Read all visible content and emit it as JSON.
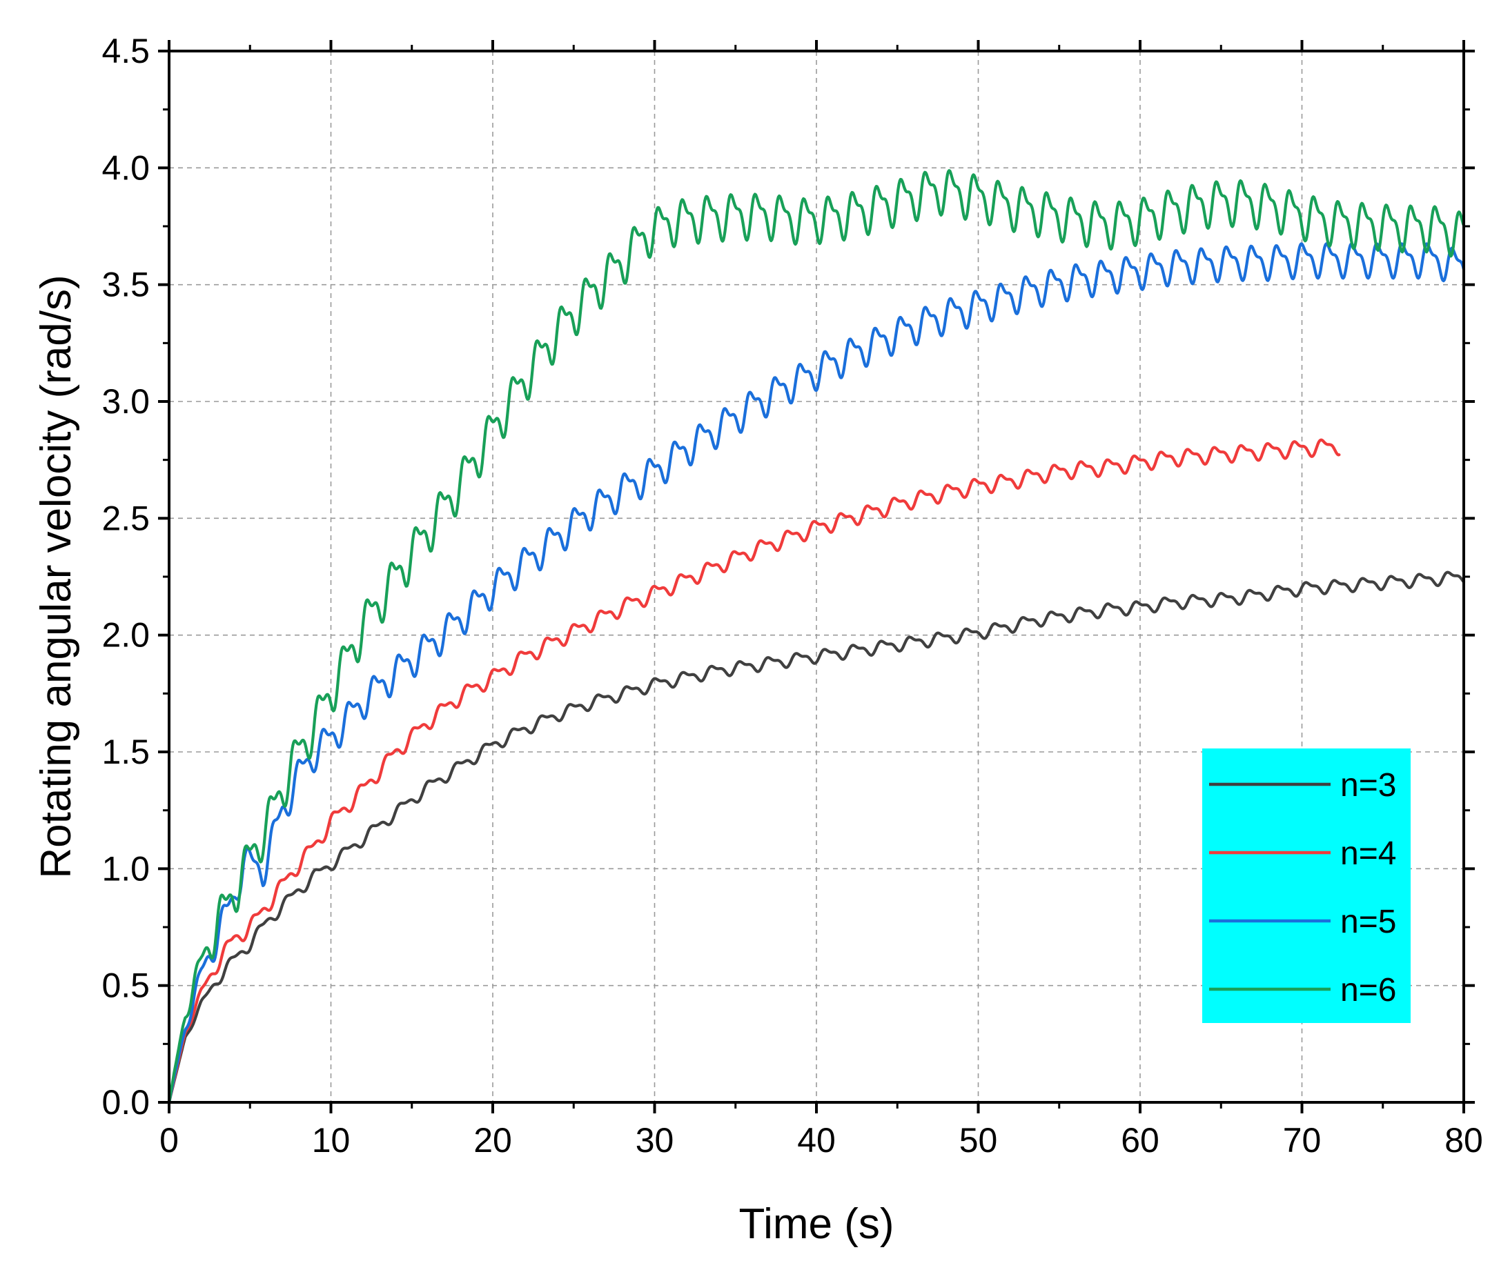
{
  "chart_data": {
    "type": "line",
    "title": "",
    "xlabel": "Time (s)",
    "ylabel": "Rotating angular velocity (rad/s)",
    "xlim": [
      0,
      80
    ],
    "ylim": [
      0,
      4.5
    ],
    "xticks": [
      0,
      10,
      20,
      30,
      40,
      50,
      60,
      70,
      80
    ],
    "xtick_labels": [
      "0",
      "10",
      "20",
      "30",
      "40",
      "50",
      "60",
      "70",
      "80"
    ],
    "yticks": [
      0,
      0.5,
      1,
      1.5,
      2,
      2.5,
      3,
      3.5,
      4,
      4.5
    ],
    "ytick_labels": [
      "0.0",
      "0.5",
      "1.0",
      "1.5",
      "2.0",
      "2.5",
      "3.0",
      "3.5",
      "4.0",
      "4.5"
    ],
    "grid": true,
    "legend": {
      "position": "bottom-right",
      "background": "#00FFFF"
    },
    "series": [
      {
        "name": "n=3",
        "color": "#404040",
        "x": [
          0,
          1,
          2,
          3,
          4,
          5,
          6,
          7,
          8,
          9,
          10,
          12,
          14,
          16,
          18,
          20,
          22,
          24,
          26,
          28,
          30,
          32,
          34,
          36,
          38,
          40,
          42,
          44,
          46,
          48,
          50,
          52,
          54,
          56,
          58,
          60,
          62,
          64,
          66,
          68,
          70,
          72,
          74,
          76,
          78,
          80
        ],
        "y": [
          0,
          0.28,
          0.42,
          0.53,
          0.61,
          0.68,
          0.77,
          0.84,
          0.91,
          0.97,
          1.02,
          1.13,
          1.24,
          1.35,
          1.44,
          1.53,
          1.6,
          1.66,
          1.71,
          1.75,
          1.79,
          1.82,
          1.85,
          1.87,
          1.89,
          1.91,
          1.93,
          1.95,
          1.97,
          1.99,
          2.01,
          2.04,
          2.07,
          2.09,
          2.11,
          2.12,
          2.14,
          2.15,
          2.16,
          2.18,
          2.2,
          2.21,
          2.22,
          2.23,
          2.24,
          2.25
        ],
        "osc_amp": 0.022,
        "osc_period": 1.75
      },
      {
        "name": "n=4",
        "color": "#F03B3B",
        "x": [
          0,
          1,
          2,
          3,
          4,
          5,
          6,
          7,
          8,
          9,
          10,
          12,
          14,
          16,
          18,
          20,
          22,
          24,
          26,
          28,
          30,
          32,
          34,
          36,
          38,
          40,
          42,
          44,
          46,
          48,
          50,
          52,
          54,
          56,
          58,
          60,
          62,
          64,
          66,
          68,
          70,
          72.3
        ],
        "y": [
          0,
          0.3,
          0.47,
          0.6,
          0.7,
          0.75,
          0.84,
          0.93,
          1.02,
          1.1,
          1.2,
          1.34,
          1.5,
          1.63,
          1.74,
          1.82,
          1.91,
          1.98,
          2.05,
          2.12,
          2.18,
          2.24,
          2.3,
          2.36,
          2.41,
          2.46,
          2.5,
          2.54,
          2.58,
          2.61,
          2.64,
          2.66,
          2.69,
          2.71,
          2.72,
          2.74,
          2.76,
          2.77,
          2.78,
          2.79,
          2.8,
          2.81
        ],
        "osc_amp": 0.028,
        "osc_period": 1.65
      },
      {
        "name": "n=5",
        "color": "#1A6FDB",
        "x": [
          0,
          1,
          2,
          3,
          4,
          4.6,
          5.8,
          7,
          8,
          9,
          10,
          12,
          14,
          16,
          18,
          20,
          22,
          24,
          26,
          28,
          30,
          32,
          34,
          36,
          38,
          40,
          42,
          44,
          46,
          48,
          50,
          52,
          54,
          56,
          58,
          60,
          62,
          64,
          66,
          68,
          70,
          72,
          74,
          76,
          78,
          80
        ],
        "y": [
          0,
          0.32,
          0.55,
          0.72,
          0.88,
          1.03,
          1.0,
          1.25,
          1.4,
          1.5,
          1.56,
          1.72,
          1.84,
          1.95,
          2.07,
          2.2,
          2.31,
          2.42,
          2.53,
          2.62,
          2.7,
          2.8,
          2.89,
          2.98,
          3.06,
          3.13,
          3.2,
          3.26,
          3.32,
          3.37,
          3.41,
          3.45,
          3.49,
          3.52,
          3.54,
          3.56,
          3.58,
          3.59,
          3.6,
          3.6,
          3.61,
          3.61,
          3.61,
          3.61,
          3.61,
          3.58
        ],
        "osc_amp": 0.06,
        "osc_period": 1.55
      },
      {
        "name": "n=6",
        "color": "#18A058",
        "x": [
          0,
          1,
          2,
          3,
          4,
          5,
          6,
          7,
          8,
          9,
          10,
          12,
          14,
          16,
          18,
          20,
          22,
          24,
          26,
          28,
          29.5,
          31,
          33,
          35,
          37,
          39,
          41,
          43,
          45,
          47.5,
          50,
          52,
          54,
          56,
          58,
          60,
          62,
          64,
          66,
          68,
          70,
          72,
          74,
          76,
          78,
          80
        ],
        "y": [
          0,
          0.38,
          0.6,
          0.77,
          0.9,
          1.05,
          1.18,
          1.35,
          1.5,
          1.62,
          1.76,
          2.04,
          2.25,
          2.45,
          2.65,
          2.88,
          3.1,
          3.3,
          3.46,
          3.6,
          3.72,
          3.77,
          3.79,
          3.8,
          3.8,
          3.78,
          3.79,
          3.82,
          3.86,
          3.91,
          3.88,
          3.84,
          3.81,
          3.78,
          3.76,
          3.78,
          3.82,
          3.85,
          3.86,
          3.84,
          3.8,
          3.77,
          3.76,
          3.75,
          3.75,
          3.72
        ],
        "osc_amp": 0.08,
        "osc_period": 1.5
      }
    ]
  }
}
